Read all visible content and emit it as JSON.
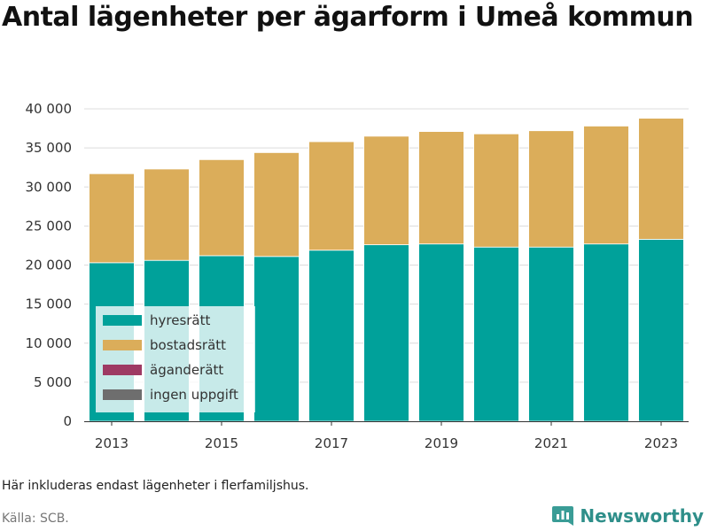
{
  "title": "Antal lägenheter per ägarform i Umeå kommun",
  "note": "Här inkluderas endast lägenheter i flerfamiljshus.",
  "source": "Källa: SCB.",
  "brand": {
    "name": "Newsworthy",
    "icon": "newsworthy-logo-icon"
  },
  "chart_data": {
    "type": "bar",
    "stacked": true,
    "categories": [
      2013,
      2014,
      2015,
      2016,
      2017,
      2018,
      2019,
      2020,
      2021,
      2022,
      2023
    ],
    "x_tick_labels": [
      "2013",
      "2015",
      "2017",
      "2019",
      "2021",
      "2023"
    ],
    "series": [
      {
        "name": "hyresrätt",
        "color": "#00a19a",
        "values": [
          20300,
          20600,
          21200,
          21100,
          21900,
          22600,
          22700,
          22300,
          22300,
          22700,
          23300
        ]
      },
      {
        "name": "bostadsrätt",
        "color": "#dbad5a",
        "values": [
          11400,
          11700,
          12300,
          13300,
          13900,
          13900,
          14400,
          14500,
          14900,
          15100,
          15500
        ]
      },
      {
        "name": "äganderätt",
        "color": "#9e3a63",
        "values": [
          0,
          0,
          0,
          0,
          0,
          0,
          0,
          0,
          0,
          0,
          0
        ]
      },
      {
        "name": "ingen uppgift",
        "color": "#6e6e6e",
        "values": [
          0,
          0,
          0,
          0,
          0,
          0,
          0,
          0,
          0,
          0,
          0
        ]
      }
    ],
    "ylim": [
      0,
      40000
    ],
    "y_ticks": [
      0,
      5000,
      10000,
      15000,
      20000,
      25000,
      30000,
      35000,
      40000
    ],
    "y_tick_labels": [
      "0",
      "5 000",
      "10 000",
      "15 000",
      "20 000",
      "25 000",
      "30 000",
      "35 000",
      "40 000"
    ],
    "grid": true,
    "legend_placement": "bottom-left, inside plot"
  }
}
